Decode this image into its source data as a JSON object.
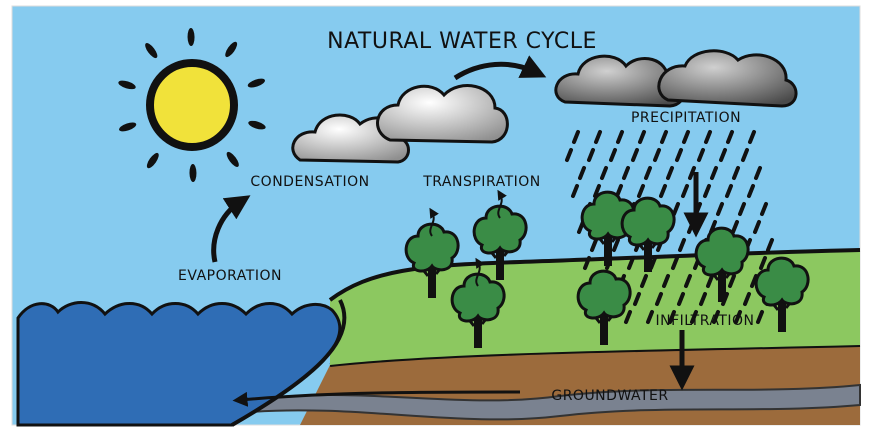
{
  "title": "NATURAL WATER CYCLE",
  "labels": {
    "condensation": "CONDENSATION",
    "transpiration": "TRANSPIRATION",
    "precipitation": "PRECIPITATION",
    "evaporation": "EVAPORATION",
    "infiltration": "INFILTRATION",
    "groundwater": "GROUNDWATER"
  }
}
